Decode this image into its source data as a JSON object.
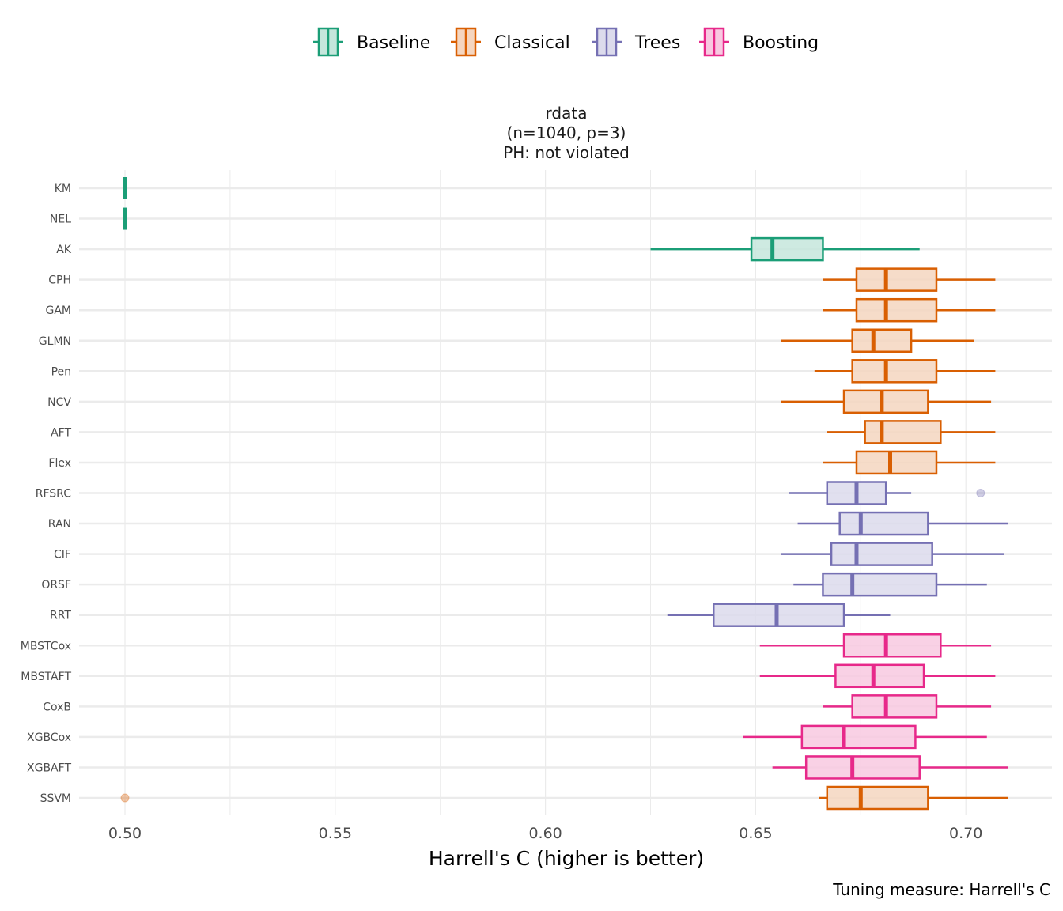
{
  "chart_data": {
    "type": "boxplot",
    "orientation": "horizontal",
    "title_lines": [
      "rdata",
      "(n=1040, p=3)",
      "PH: not violated"
    ],
    "xlabel": "Harrell's C (higher is better)",
    "ylabel": "",
    "caption": "Tuning measure: Harrell's C",
    "xlim": [
      0.4885,
      0.7305
    ],
    "x_ticks": [
      0.5,
      0.55,
      0.6,
      0.65,
      0.7
    ],
    "x_tick_labels": [
      "0.50",
      "0.55",
      "0.60",
      "0.65",
      "0.70"
    ],
    "x_minor_ticks": [
      0.525,
      0.575,
      0.625,
      0.675
    ],
    "grid": true,
    "legend": {
      "position": "top",
      "entries": [
        {
          "name": "Baseline",
          "stroke": "#1b9e77",
          "fill": "#c5e6dc"
        },
        {
          "name": "Classical",
          "stroke": "#d95f02",
          "fill": "#f5d6c0"
        },
        {
          "name": "Trees",
          "stroke": "#7570b3",
          "fill": "#dcdbec"
        },
        {
          "name": "Boosting",
          "stroke": "#e7298a",
          "fill": "#f8c9e1"
        }
      ]
    },
    "categories": [
      "KM",
      "NEL",
      "AK",
      "CPH",
      "GAM",
      "GLMN",
      "Pen",
      "NCV",
      "AFT",
      "Flex",
      "RFSRC",
      "RAN",
      "CIF",
      "ORSF",
      "RRT",
      "MBSTCox",
      "MBSTAFT",
      "CoxB",
      "XGBCox",
      "XGBAFT",
      "SSVM"
    ],
    "series": [
      {
        "name": "KM",
        "group": "Baseline",
        "whisker_low": 0.5,
        "q1": 0.5,
        "median": 0.5,
        "q3": 0.5,
        "whisker_high": 0.5,
        "outliers": []
      },
      {
        "name": "NEL",
        "group": "Baseline",
        "whisker_low": 0.5,
        "q1": 0.5,
        "median": 0.5,
        "q3": 0.5,
        "whisker_high": 0.5,
        "outliers": []
      },
      {
        "name": "AK",
        "group": "Baseline",
        "whisker_low": 0.625,
        "q1": 0.649,
        "median": 0.654,
        "q3": 0.666,
        "whisker_high": 0.689,
        "outliers": []
      },
      {
        "name": "CPH",
        "group": "Classical",
        "whisker_low": 0.666,
        "q1": 0.674,
        "median": 0.681,
        "q3": 0.693,
        "whisker_high": 0.707,
        "outliers": []
      },
      {
        "name": "GAM",
        "group": "Classical",
        "whisker_low": 0.666,
        "q1": 0.674,
        "median": 0.681,
        "q3": 0.693,
        "whisker_high": 0.707,
        "outliers": []
      },
      {
        "name": "GLMN",
        "group": "Classical",
        "whisker_low": 0.656,
        "q1": 0.673,
        "median": 0.678,
        "q3": 0.687,
        "whisker_high": 0.702,
        "outliers": []
      },
      {
        "name": "Pen",
        "group": "Classical",
        "whisker_low": 0.664,
        "q1": 0.673,
        "median": 0.681,
        "q3": 0.693,
        "whisker_high": 0.707,
        "outliers": []
      },
      {
        "name": "NCV",
        "group": "Classical",
        "whisker_low": 0.656,
        "q1": 0.671,
        "median": 0.68,
        "q3": 0.691,
        "whisker_high": 0.706,
        "outliers": []
      },
      {
        "name": "AFT",
        "group": "Classical",
        "whisker_low": 0.667,
        "q1": 0.676,
        "median": 0.68,
        "q3": 0.694,
        "whisker_high": 0.707,
        "outliers": []
      },
      {
        "name": "Flex",
        "group": "Classical",
        "whisker_low": 0.666,
        "q1": 0.674,
        "median": 0.682,
        "q3": 0.693,
        "whisker_high": 0.707,
        "outliers": []
      },
      {
        "name": "RFSRC",
        "group": "Trees",
        "whisker_low": 0.658,
        "q1": 0.667,
        "median": 0.674,
        "q3": 0.681,
        "whisker_high": 0.687,
        "outliers": [
          0.7035
        ]
      },
      {
        "name": "RAN",
        "group": "Trees",
        "whisker_low": 0.66,
        "q1": 0.67,
        "median": 0.675,
        "q3": 0.691,
        "whisker_high": 0.71,
        "outliers": []
      },
      {
        "name": "CIF",
        "group": "Trees",
        "whisker_low": 0.656,
        "q1": 0.668,
        "median": 0.674,
        "q3": 0.692,
        "whisker_high": 0.709,
        "outliers": []
      },
      {
        "name": "ORSF",
        "group": "Trees",
        "whisker_low": 0.659,
        "q1": 0.666,
        "median": 0.673,
        "q3": 0.693,
        "whisker_high": 0.705,
        "outliers": []
      },
      {
        "name": "RRT",
        "group": "Trees",
        "whisker_low": 0.629,
        "q1": 0.64,
        "median": 0.655,
        "q3": 0.671,
        "whisker_high": 0.682,
        "outliers": []
      },
      {
        "name": "MBSTCox",
        "group": "Boosting",
        "whisker_low": 0.651,
        "q1": 0.671,
        "median": 0.681,
        "q3": 0.694,
        "whisker_high": 0.706,
        "outliers": []
      },
      {
        "name": "MBSTAFT",
        "group": "Boosting",
        "whisker_low": 0.651,
        "q1": 0.669,
        "median": 0.678,
        "q3": 0.69,
        "whisker_high": 0.707,
        "outliers": []
      },
      {
        "name": "CoxB",
        "group": "Boosting",
        "whisker_low": 0.666,
        "q1": 0.673,
        "median": 0.681,
        "q3": 0.693,
        "whisker_high": 0.706,
        "outliers": []
      },
      {
        "name": "XGBCox",
        "group": "Boosting",
        "whisker_low": 0.647,
        "q1": 0.661,
        "median": 0.671,
        "q3": 0.688,
        "whisker_high": 0.705,
        "outliers": []
      },
      {
        "name": "XGBAFT",
        "group": "Boosting",
        "whisker_low": 0.654,
        "q1": 0.662,
        "median": 0.673,
        "q3": 0.689,
        "whisker_high": 0.71,
        "outliers": []
      },
      {
        "name": "SSVM",
        "group": "Classical",
        "whisker_low": 0.665,
        "q1": 0.667,
        "median": 0.675,
        "q3": 0.691,
        "whisker_high": 0.71,
        "outliers": [
          0.5
        ]
      }
    ]
  }
}
